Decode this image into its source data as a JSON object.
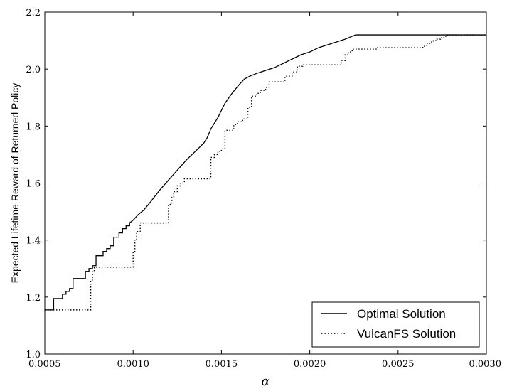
{
  "chart_data": {
    "type": "line",
    "title": "",
    "xlabel": "α",
    "ylabel": "Expected Lifetime Reward of Returned Policy",
    "xlim": [
      0.0005,
      0.003
    ],
    "ylim": [
      1.0,
      2.2
    ],
    "x_ticks": [
      "0.0005",
      "0.0010",
      "0.0015",
      "0.0020",
      "0.0025",
      "0.0030"
    ],
    "y_ticks": [
      "1.0",
      "1.2",
      "1.4",
      "1.6",
      "1.8",
      "2.0",
      "2.2"
    ],
    "grid": false,
    "legend_position": "bottom-right",
    "step": true,
    "series": [
      {
        "name": "Optimal Solution",
        "style": "solid",
        "color": "#000000",
        "points": [
          [
            0.0005,
            1.155
          ],
          [
            0.00055,
            1.155
          ],
          [
            0.00055,
            1.195
          ],
          [
            0.0006,
            1.195
          ],
          [
            0.0006,
            1.21
          ],
          [
            0.00062,
            1.21
          ],
          [
            0.00062,
            1.22
          ],
          [
            0.00064,
            1.22
          ],
          [
            0.00064,
            1.23
          ],
          [
            0.00066,
            1.23
          ],
          [
            0.00066,
            1.265
          ],
          [
            0.00073,
            1.265
          ],
          [
            0.00073,
            1.29
          ],
          [
            0.00075,
            1.29
          ],
          [
            0.00075,
            1.3
          ],
          [
            0.00077,
            1.3
          ],
          [
            0.00077,
            1.31
          ],
          [
            0.00079,
            1.31
          ],
          [
            0.00079,
            1.345
          ],
          [
            0.00083,
            1.345
          ],
          [
            0.00083,
            1.36
          ],
          [
            0.00085,
            1.36
          ],
          [
            0.00085,
            1.37
          ],
          [
            0.00087,
            1.37
          ],
          [
            0.00087,
            1.38
          ],
          [
            0.00089,
            1.38
          ],
          [
            0.00089,
            1.41
          ],
          [
            0.00092,
            1.41
          ],
          [
            0.00092,
            1.425
          ],
          [
            0.00094,
            1.425
          ],
          [
            0.00094,
            1.44
          ],
          [
            0.00096,
            1.44
          ],
          [
            0.00096,
            1.45
          ],
          [
            0.00098,
            1.45
          ],
          [
            0.00098,
            1.46
          ],
          [
            0.001,
            1.47
          ],
          [
            0.00103,
            1.49
          ],
          [
            0.00106,
            1.505
          ],
          [
            0.0011,
            1.535
          ],
          [
            0.00115,
            1.575
          ],
          [
            0.0012,
            1.61
          ],
          [
            0.00125,
            1.645
          ],
          [
            0.0013,
            1.68
          ],
          [
            0.00135,
            1.71
          ],
          [
            0.0014,
            1.74
          ],
          [
            0.00142,
            1.76
          ],
          [
            0.00144,
            1.79
          ],
          [
            0.00148,
            1.83
          ],
          [
            0.00152,
            1.88
          ],
          [
            0.00156,
            1.915
          ],
          [
            0.0016,
            1.945
          ],
          [
            0.00163,
            1.965
          ],
          [
            0.00166,
            1.975
          ],
          [
            0.0017,
            1.985
          ],
          [
            0.00175,
            1.995
          ],
          [
            0.0018,
            2.005
          ],
          [
            0.00185,
            2.02
          ],
          [
            0.0019,
            2.035
          ],
          [
            0.00195,
            2.05
          ],
          [
            0.002,
            2.06
          ],
          [
            0.00205,
            2.075
          ],
          [
            0.0021,
            2.085
          ],
          [
            0.00215,
            2.095
          ],
          [
            0.0022,
            2.105
          ],
          [
            0.00222,
            2.11
          ],
          [
            0.00224,
            2.115
          ],
          [
            0.00226,
            2.12
          ],
          [
            0.003,
            2.12
          ]
        ]
      },
      {
        "name": "VulcanFS Solution",
        "style": "dotted",
        "color": "#000000",
        "points": [
          [
            0.0005,
            1.155
          ],
          [
            0.00076,
            1.155
          ],
          [
            0.00076,
            1.26
          ],
          [
            0.00077,
            1.26
          ],
          [
            0.00077,
            1.29
          ],
          [
            0.00078,
            1.29
          ],
          [
            0.00078,
            1.305
          ],
          [
            0.001,
            1.305
          ],
          [
            0.001,
            1.36
          ],
          [
            0.00101,
            1.36
          ],
          [
            0.00101,
            1.4
          ],
          [
            0.00102,
            1.4
          ],
          [
            0.00102,
            1.43
          ],
          [
            0.00104,
            1.43
          ],
          [
            0.00104,
            1.46
          ],
          [
            0.0012,
            1.46
          ],
          [
            0.0012,
            1.52
          ],
          [
            0.00121,
            1.52
          ],
          [
            0.00121,
            1.53
          ],
          [
            0.00122,
            1.53
          ],
          [
            0.00122,
            1.55
          ],
          [
            0.00123,
            1.55
          ],
          [
            0.00123,
            1.57
          ],
          [
            0.00125,
            1.57
          ],
          [
            0.00125,
            1.59
          ],
          [
            0.00127,
            1.59
          ],
          [
            0.00127,
            1.6
          ],
          [
            0.00129,
            1.6
          ],
          [
            0.00129,
            1.615
          ],
          [
            0.00144,
            1.615
          ],
          [
            0.00144,
            1.69
          ],
          [
            0.00146,
            1.69
          ],
          [
            0.00146,
            1.7
          ],
          [
            0.00148,
            1.7
          ],
          [
            0.00148,
            1.71
          ],
          [
            0.0015,
            1.71
          ],
          [
            0.0015,
            1.72
          ],
          [
            0.00152,
            1.72
          ],
          [
            0.00152,
            1.785
          ],
          [
            0.00157,
            1.785
          ],
          [
            0.00157,
            1.805
          ],
          [
            0.00159,
            1.805
          ],
          [
            0.00159,
            1.815
          ],
          [
            0.00162,
            1.815
          ],
          [
            0.00162,
            1.825
          ],
          [
            0.00165,
            1.825
          ],
          [
            0.00165,
            1.865
          ],
          [
            0.00167,
            1.865
          ],
          [
            0.00167,
            1.905
          ],
          [
            0.0017,
            1.905
          ],
          [
            0.0017,
            1.915
          ],
          [
            0.00172,
            1.915
          ],
          [
            0.00172,
            1.925
          ],
          [
            0.00175,
            1.925
          ],
          [
            0.00175,
            1.935
          ],
          [
            0.00177,
            1.935
          ],
          [
            0.00177,
            1.955
          ],
          [
            0.00186,
            1.955
          ],
          [
            0.00186,
            1.975
          ],
          [
            0.0019,
            1.975
          ],
          [
            0.0019,
            1.99
          ],
          [
            0.00193,
            1.99
          ],
          [
            0.00193,
            2.01
          ],
          [
            0.00196,
            2.01
          ],
          [
            0.00196,
            2.015
          ],
          [
            0.00218,
            2.015
          ],
          [
            0.00218,
            2.03
          ],
          [
            0.0022,
            2.03
          ],
          [
            0.0022,
            2.05
          ],
          [
            0.00222,
            2.05
          ],
          [
            0.00222,
            2.06
          ],
          [
            0.00224,
            2.06
          ],
          [
            0.00224,
            2.07
          ],
          [
            0.00238,
            2.07
          ],
          [
            0.00238,
            2.075
          ],
          [
            0.00264,
            2.075
          ],
          [
            0.00264,
            2.08
          ],
          [
            0.00266,
            2.08
          ],
          [
            0.00266,
            2.09
          ],
          [
            0.00268,
            2.09
          ],
          [
            0.00268,
            2.095
          ],
          [
            0.0027,
            2.095
          ],
          [
            0.0027,
            2.1
          ],
          [
            0.00272,
            2.1
          ],
          [
            0.00272,
            2.105
          ],
          [
            0.00274,
            2.105
          ],
          [
            0.00274,
            2.11
          ],
          [
            0.00276,
            2.11
          ],
          [
            0.00276,
            2.115
          ],
          [
            0.00278,
            2.115
          ],
          [
            0.00278,
            2.12
          ],
          [
            0.003,
            2.12
          ]
        ]
      }
    ]
  }
}
